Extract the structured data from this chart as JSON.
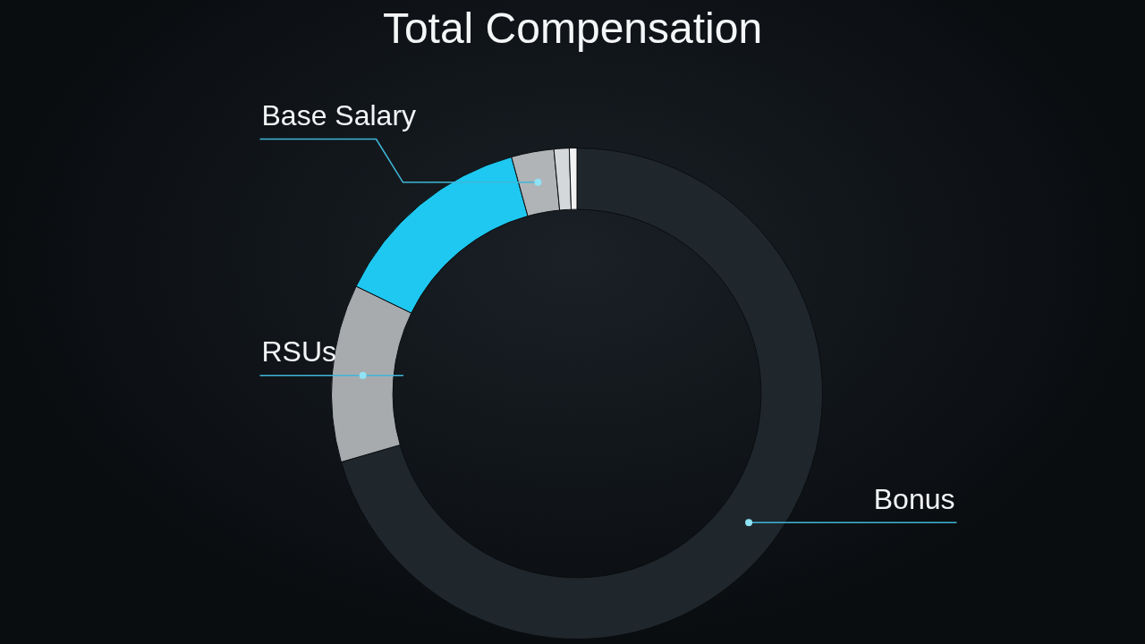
{
  "chart_data": {
    "type": "donut",
    "title": "Total Compensation",
    "categories": [
      "Bonus",
      "RSUs",
      null,
      "Base Salary",
      null,
      null
    ],
    "values": [
      70.5,
      11.7,
      13.5,
      2.8,
      1.0,
      0.5
    ],
    "colors": [
      "#1f272d",
      "#a7abae",
      "#1ec8f0",
      "#b0b4b7",
      "#d4d8da",
      "#f2f2f2"
    ]
  }
}
